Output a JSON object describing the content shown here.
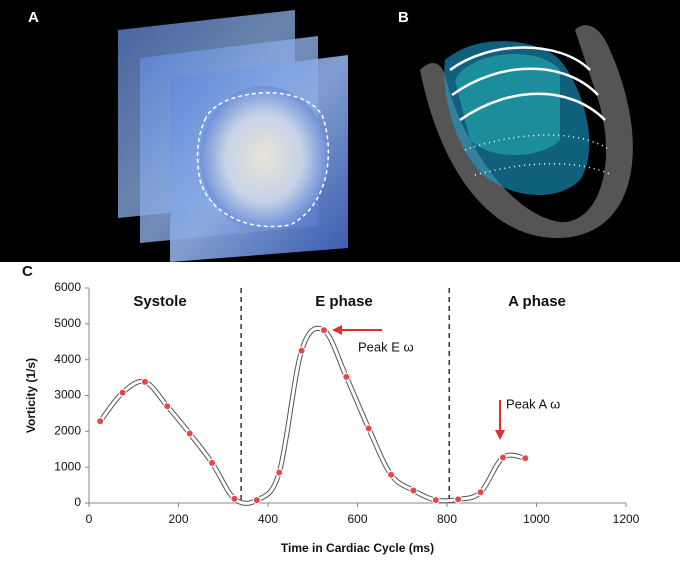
{
  "panel_labels": [
    "A",
    "B",
    "C"
  ],
  "chart_data": {
    "type": "line",
    "xlabel": "Time in Cardiac Cycle (ms)",
    "ylabel": "Vorticity (1/s)",
    "xlim": [
      0,
      1200
    ],
    "xticks": [
      0,
      200,
      400,
      600,
      800,
      1000,
      1200
    ],
    "ylim": [
      0,
      6000
    ],
    "yticks": [
      0,
      1000,
      2000,
      3000,
      4000,
      5000,
      6000
    ],
    "x": [
      25,
      75,
      125,
      175,
      225,
      275,
      325,
      375,
      425,
      475,
      525,
      575,
      625,
      675,
      725,
      775,
      825,
      875,
      925,
      975
    ],
    "series": [
      {
        "color": "#ffffff",
        "marker_color": "#e8474a",
        "values": [
          2280,
          3080,
          3380,
          2700,
          1940,
          1120,
          120,
          80,
          850,
          4250,
          4820,
          3520,
          2080,
          790,
          350,
          80,
          100,
          300,
          1270,
          1250
        ]
      }
    ],
    "phase_boundaries": [
      340,
      805
    ],
    "phase_labels": [
      "Systole",
      "E phase",
      "A phase"
    ],
    "annotations": [
      "Peak E ω",
      "Peak A ω"
    ]
  }
}
